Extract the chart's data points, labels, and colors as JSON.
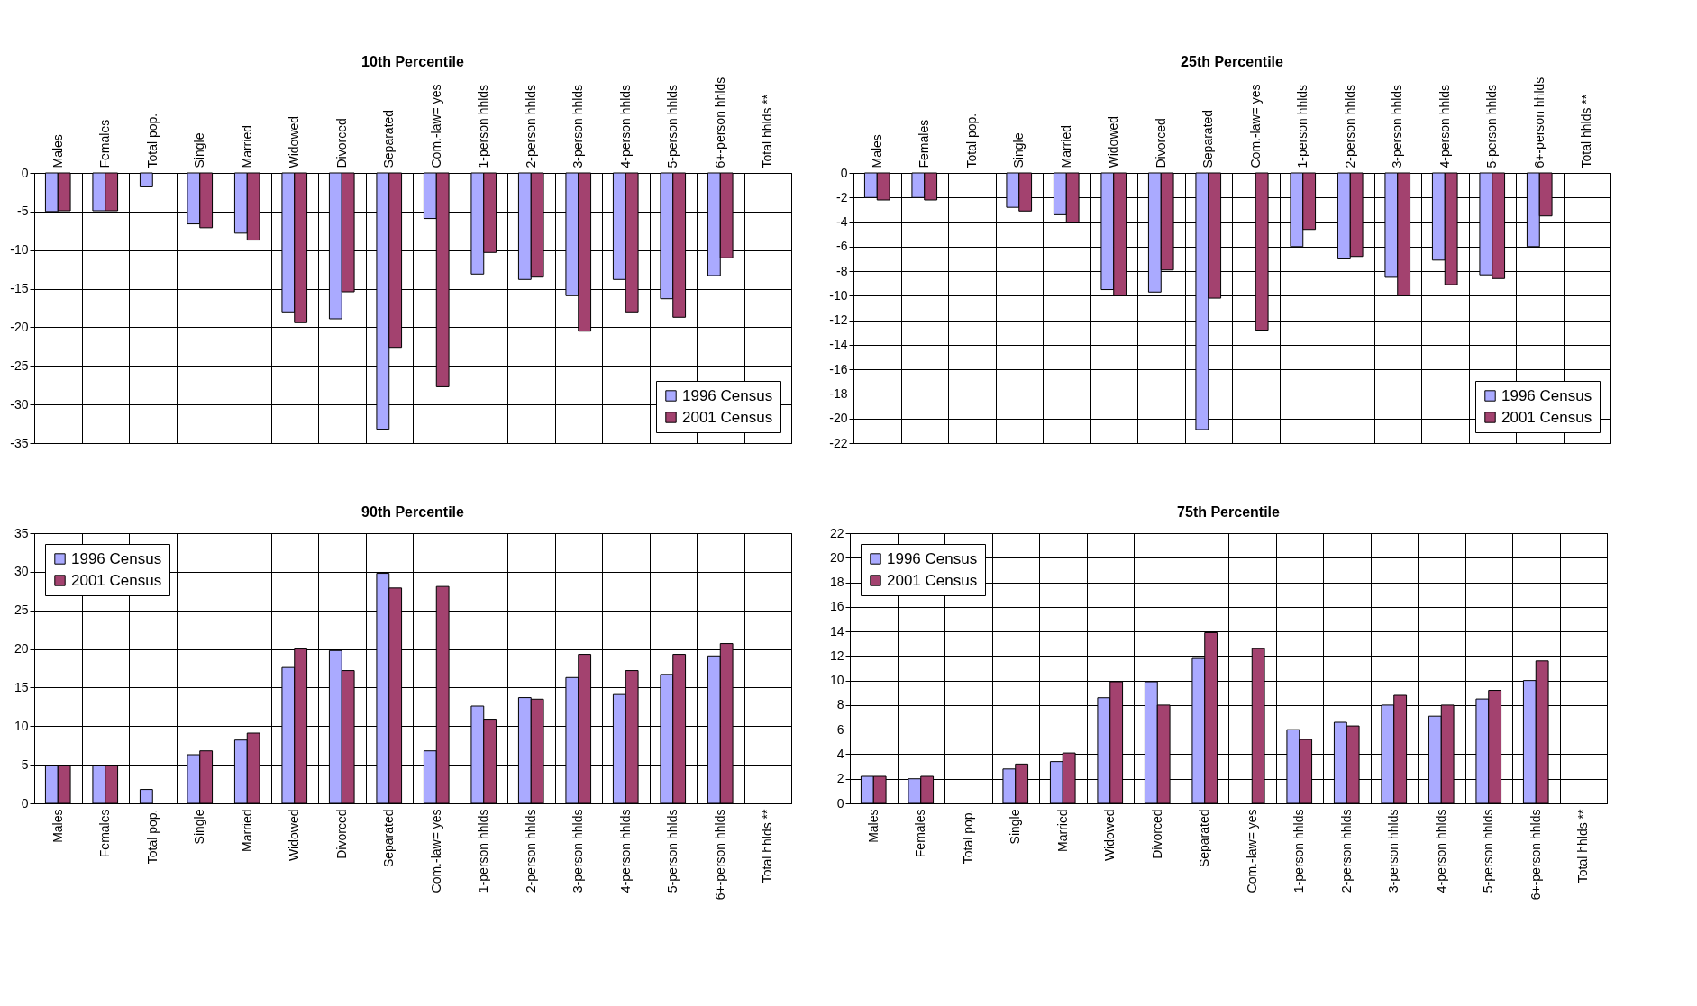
{
  "chart_data": [
    {
      "type": "bar",
      "title": "10th Percentile",
      "categories": [
        "Males",
        "Females",
        "Total pop.",
        "Single",
        "Married",
        "Widowed",
        "Divorced",
        "Separated",
        "Com.-law= yes",
        "1-person hhlds",
        "2-person hhlds",
        "3-person hhlds",
        "4-person hhlds",
        "5-person hhlds",
        "6+-person hhlds",
        "Total hhlds **"
      ],
      "series": [
        {
          "name": "1996 Census",
          "color": "#aaaaff",
          "values": [
            -5.0,
            -4.9,
            -1.8,
            -6.6,
            -7.8,
            -18.0,
            -18.9,
            -33.2,
            -5.9,
            -13.1,
            -13.8,
            -15.9,
            -13.8,
            -16.3,
            -13.3,
            null
          ]
        },
        {
          "name": "2001 Census",
          "color": "#a3426f",
          "values": [
            -4.9,
            -4.9,
            null,
            -7.1,
            -8.7,
            -19.4,
            -15.4,
            -22.6,
            -27.7,
            -10.3,
            -13.5,
            -20.5,
            -18.0,
            -18.7,
            -11.0,
            null
          ]
        }
      ],
      "ylim": [
        -35,
        0
      ],
      "yticks": [
        0,
        -5,
        -10,
        -15,
        -20,
        -25,
        -30,
        -35
      ],
      "grid": true,
      "legend": "bottom right"
    },
    {
      "type": "bar",
      "title": "25th Percentile",
      "categories": [
        "Males",
        "Females",
        "Total pop.",
        "Single",
        "Married",
        "Widowed",
        "Divorced",
        "Separated",
        "Com.-law= yes",
        "1-person hhlds",
        "2-person hhlds",
        "3-person hhlds",
        "4-person hhlds",
        "5-person hhlds",
        "6+-person hhlds",
        "Total hhlds **"
      ],
      "series": [
        {
          "name": "1996 Census",
          "color": "#aaaaff",
          "values": [
            -2.0,
            -2.0,
            null,
            -2.8,
            -3.4,
            -9.5,
            -9.7,
            -20.9,
            null,
            -6.0,
            -7.0,
            -8.5,
            -7.1,
            -8.3,
            -6.0,
            null
          ]
        },
        {
          "name": "2001 Census",
          "color": "#a3426f",
          "values": [
            -2.2,
            -2.2,
            null,
            -3.1,
            -4.0,
            -10.0,
            -7.9,
            -10.2,
            -12.8,
            -4.6,
            -6.8,
            -10.0,
            -9.1,
            -8.6,
            -3.5,
            null
          ]
        }
      ],
      "ylim": [
        -22,
        0
      ],
      "yticks": [
        0,
        -2,
        -4,
        -6,
        -8,
        -10,
        -12,
        -14,
        -16,
        -18,
        -20,
        -22
      ],
      "grid": true,
      "legend": "bottom right"
    },
    {
      "type": "bar",
      "title": "90th Percentile",
      "categories": [
        "Males",
        "Females",
        "Total pop.",
        "Single",
        "Married",
        "Widowed",
        "Divorced",
        "Separated",
        "Com.-law= yes",
        "1-person hhlds",
        "2-person hhlds",
        "3-person hhlds",
        "4-person hhlds",
        "5-person hhlds",
        "6+-person hhlds",
        "Total hhlds **"
      ],
      "series": [
        {
          "name": "1996 Census",
          "color": "#aaaaff",
          "values": [
            4.9,
            4.9,
            1.8,
            6.3,
            8.2,
            17.6,
            19.8,
            29.8,
            6.8,
            12.6,
            13.7,
            16.3,
            14.1,
            16.7,
            19.1,
            null
          ]
        },
        {
          "name": "2001 Census",
          "color": "#a3426f",
          "values": [
            4.9,
            4.9,
            null,
            6.8,
            9.1,
            20.0,
            17.2,
            27.9,
            28.1,
            10.9,
            13.5,
            19.3,
            17.2,
            19.3,
            20.7,
            null
          ]
        }
      ],
      "ylim": [
        0,
        35
      ],
      "yticks": [
        0,
        5,
        10,
        15,
        20,
        25,
        30,
        35
      ],
      "grid": true,
      "legend": "top left"
    },
    {
      "type": "bar",
      "title": "75th Percentile",
      "categories": [
        "Males",
        "Females",
        "Total pop.",
        "Single",
        "Married",
        "Widowed",
        "Divorced",
        "Separated",
        "Com.-law= yes",
        "1-person hhlds",
        "2-person hhlds",
        "3-person hhlds",
        "4-person hhlds",
        "5-person hhlds",
        "6+-person hhlds",
        "Total hhlds **"
      ],
      "series": [
        {
          "name": "1996 Census",
          "color": "#aaaaff",
          "values": [
            2.2,
            2.0,
            null,
            2.8,
            3.4,
            8.6,
            9.9,
            11.8,
            null,
            6.0,
            6.6,
            8.0,
            7.1,
            8.5,
            10.0,
            null
          ]
        },
        {
          "name": "2001 Census",
          "color": "#a3426f",
          "values": [
            2.2,
            2.2,
            null,
            3.2,
            4.1,
            9.9,
            8.0,
            13.9,
            12.6,
            5.2,
            6.3,
            8.8,
            8.0,
            9.2,
            11.6,
            null
          ]
        }
      ],
      "ylim": [
        0,
        22
      ],
      "yticks": [
        0,
        2,
        4,
        6,
        8,
        10,
        12,
        14,
        16,
        18,
        20,
        22
      ],
      "grid": true,
      "legend": "top left"
    }
  ]
}
